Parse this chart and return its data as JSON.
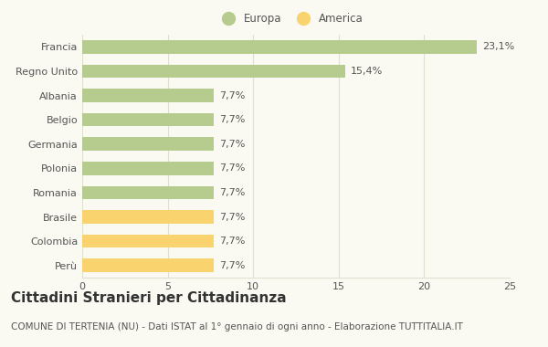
{
  "categories": [
    "Francia",
    "Regno Unito",
    "Albania",
    "Belgio",
    "Germania",
    "Polonia",
    "Romania",
    "Brasile",
    "Colombia",
    "Perù"
  ],
  "values": [
    23.1,
    15.4,
    7.7,
    7.7,
    7.7,
    7.7,
    7.7,
    7.7,
    7.7,
    7.7
  ],
  "labels": [
    "23,1%",
    "15,4%",
    "7,7%",
    "7,7%",
    "7,7%",
    "7,7%",
    "7,7%",
    "7,7%",
    "7,7%",
    "7,7%"
  ],
  "colors": [
    "#b5cc8e",
    "#b5cc8e",
    "#b5cc8e",
    "#b5cc8e",
    "#b5cc8e",
    "#b5cc8e",
    "#b5cc8e",
    "#f9d46e",
    "#f9d46e",
    "#f9d46e"
  ],
  "europa_color": "#b5cc8e",
  "america_color": "#f9d46e",
  "background_color": "#fafaf2",
  "plot_bg_color": "#fafaf2",
  "title": "Cittadini Stranieri per Cittadinanza",
  "subtitle": "COMUNE DI TERTENIA (NU) - Dati ISTAT al 1° gennaio di ogni anno - Elaborazione TUTTITALIA.IT",
  "xlim": [
    0,
    25
  ],
  "xticks": [
    0,
    5,
    10,
    15,
    20,
    25
  ],
  "bar_height": 0.55,
  "grid_color": "#e0e0d0",
  "text_color": "#555555",
  "label_fontsize": 8,
  "tick_fontsize": 8,
  "title_fontsize": 11,
  "subtitle_fontsize": 7.5
}
